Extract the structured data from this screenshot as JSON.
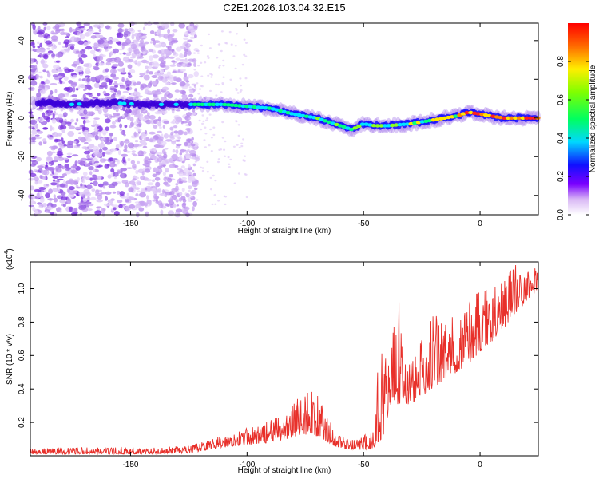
{
  "title": "C2E1.2026.103.04.32.E15",
  "colors": {
    "snr_line": "#e8302a",
    "spectrogram_background": "#ffffff",
    "low_amplitude": "#c9a7f2",
    "mid_amplitude": "#00e5ff",
    "high_amplitude": "#ff1010"
  },
  "chart_data": [
    {
      "type": "heatmap",
      "title": "",
      "xlabel": "Height of straight line (km)",
      "ylabel": "Frequency (Hz)",
      "xlim": [
        -193,
        25
      ],
      "ylim": [
        -50,
        49
      ],
      "x_ticks": [
        -150,
        -100,
        -50,
        0
      ],
      "x_tick_labels": [
        "-150",
        "-100",
        "-50",
        "0"
      ],
      "y_ticks": [
        -40,
        -20,
        0,
        20,
        40
      ],
      "y_tick_labels": [
        "-40",
        "-20",
        "0",
        "20",
        "40"
      ],
      "colorbar": {
        "label": "Normalized spectral amplitude",
        "range": [
          0,
          1
        ],
        "ticks": [
          0,
          0.2,
          0.4,
          0.6,
          0.8
        ],
        "tick_labels": [
          "0.0",
          "0.2",
          "0.4",
          "0.6",
          "0.8"
        ],
        "colormap": "rainbow (white-purple-blue-cyan-green-yellow-red)"
      },
      "ridge": {
        "description": "frequency of the dominant spectral ridge",
        "x": [
          -190,
          -175,
          -160,
          -145,
          -130,
          -120,
          -110,
          -100,
          -90,
          -80,
          -70,
          -60,
          -55,
          -50,
          -45,
          -40,
          -30,
          -20,
          -10,
          -5,
          0,
          10,
          20,
          25
        ],
        "y": [
          8,
          7,
          8,
          7,
          7,
          7,
          7,
          6,
          5,
          2,
          0,
          -4,
          -6,
          -3,
          -4,
          -4,
          -3,
          -1,
          1,
          3,
          2,
          0,
          0,
          0
        ]
      }
    },
    {
      "type": "line",
      "title": "",
      "xlabel": "Height of straight line (km)",
      "ylabel": "SNR (10 * v/v)",
      "y_scale_label": "(x10",
      "y_scale_exponent": "4",
      "xlim": [
        -193,
        25
      ],
      "ylim": [
        0,
        1.16
      ],
      "x_ticks": [
        -150,
        -100,
        -50,
        0
      ],
      "x_tick_labels": [
        "-150",
        "-100",
        "-50",
        "0"
      ],
      "y_ticks": [
        0.2,
        0.4,
        0.6,
        0.8,
        1.0
      ],
      "y_tick_labels": [
        "0.2",
        "0.4",
        "0.6",
        "0.8",
        "1.0"
      ],
      "series": [
        {
          "envelope_x": [
            -193,
            -180,
            -160,
            -140,
            -125,
            -115,
            -105,
            -95,
            -85,
            -78,
            -72,
            -68,
            -63,
            -58,
            -52,
            -46,
            -42,
            -40,
            -38,
            -35,
            -32,
            -28,
            -25,
            -20,
            -15,
            -10,
            -5,
            0,
            5,
            10,
            15,
            20,
            25
          ],
          "base": [
            0.01,
            0.01,
            0.01,
            0.01,
            0.015,
            0.04,
            0.06,
            0.07,
            0.09,
            0.12,
            0.13,
            0.1,
            0.06,
            0.04,
            0.035,
            0.04,
            0.1,
            0.2,
            0.3,
            0.3,
            0.3,
            0.32,
            0.36,
            0.4,
            0.45,
            0.5,
            0.55,
            0.62,
            0.68,
            0.76,
            0.85,
            0.92,
            1.0
          ],
          "peak": [
            0.04,
            0.05,
            0.05,
            0.05,
            0.06,
            0.1,
            0.15,
            0.18,
            0.25,
            0.36,
            0.42,
            0.32,
            0.18,
            0.1,
            0.1,
            0.16,
            0.9,
            0.5,
            0.7,
            1.0,
            0.6,
            0.6,
            0.7,
            0.9,
            0.82,
            0.85,
            0.95,
            1.05,
            1.0,
            1.1,
            1.15,
            1.12,
            1.16
          ]
        }
      ]
    }
  ]
}
